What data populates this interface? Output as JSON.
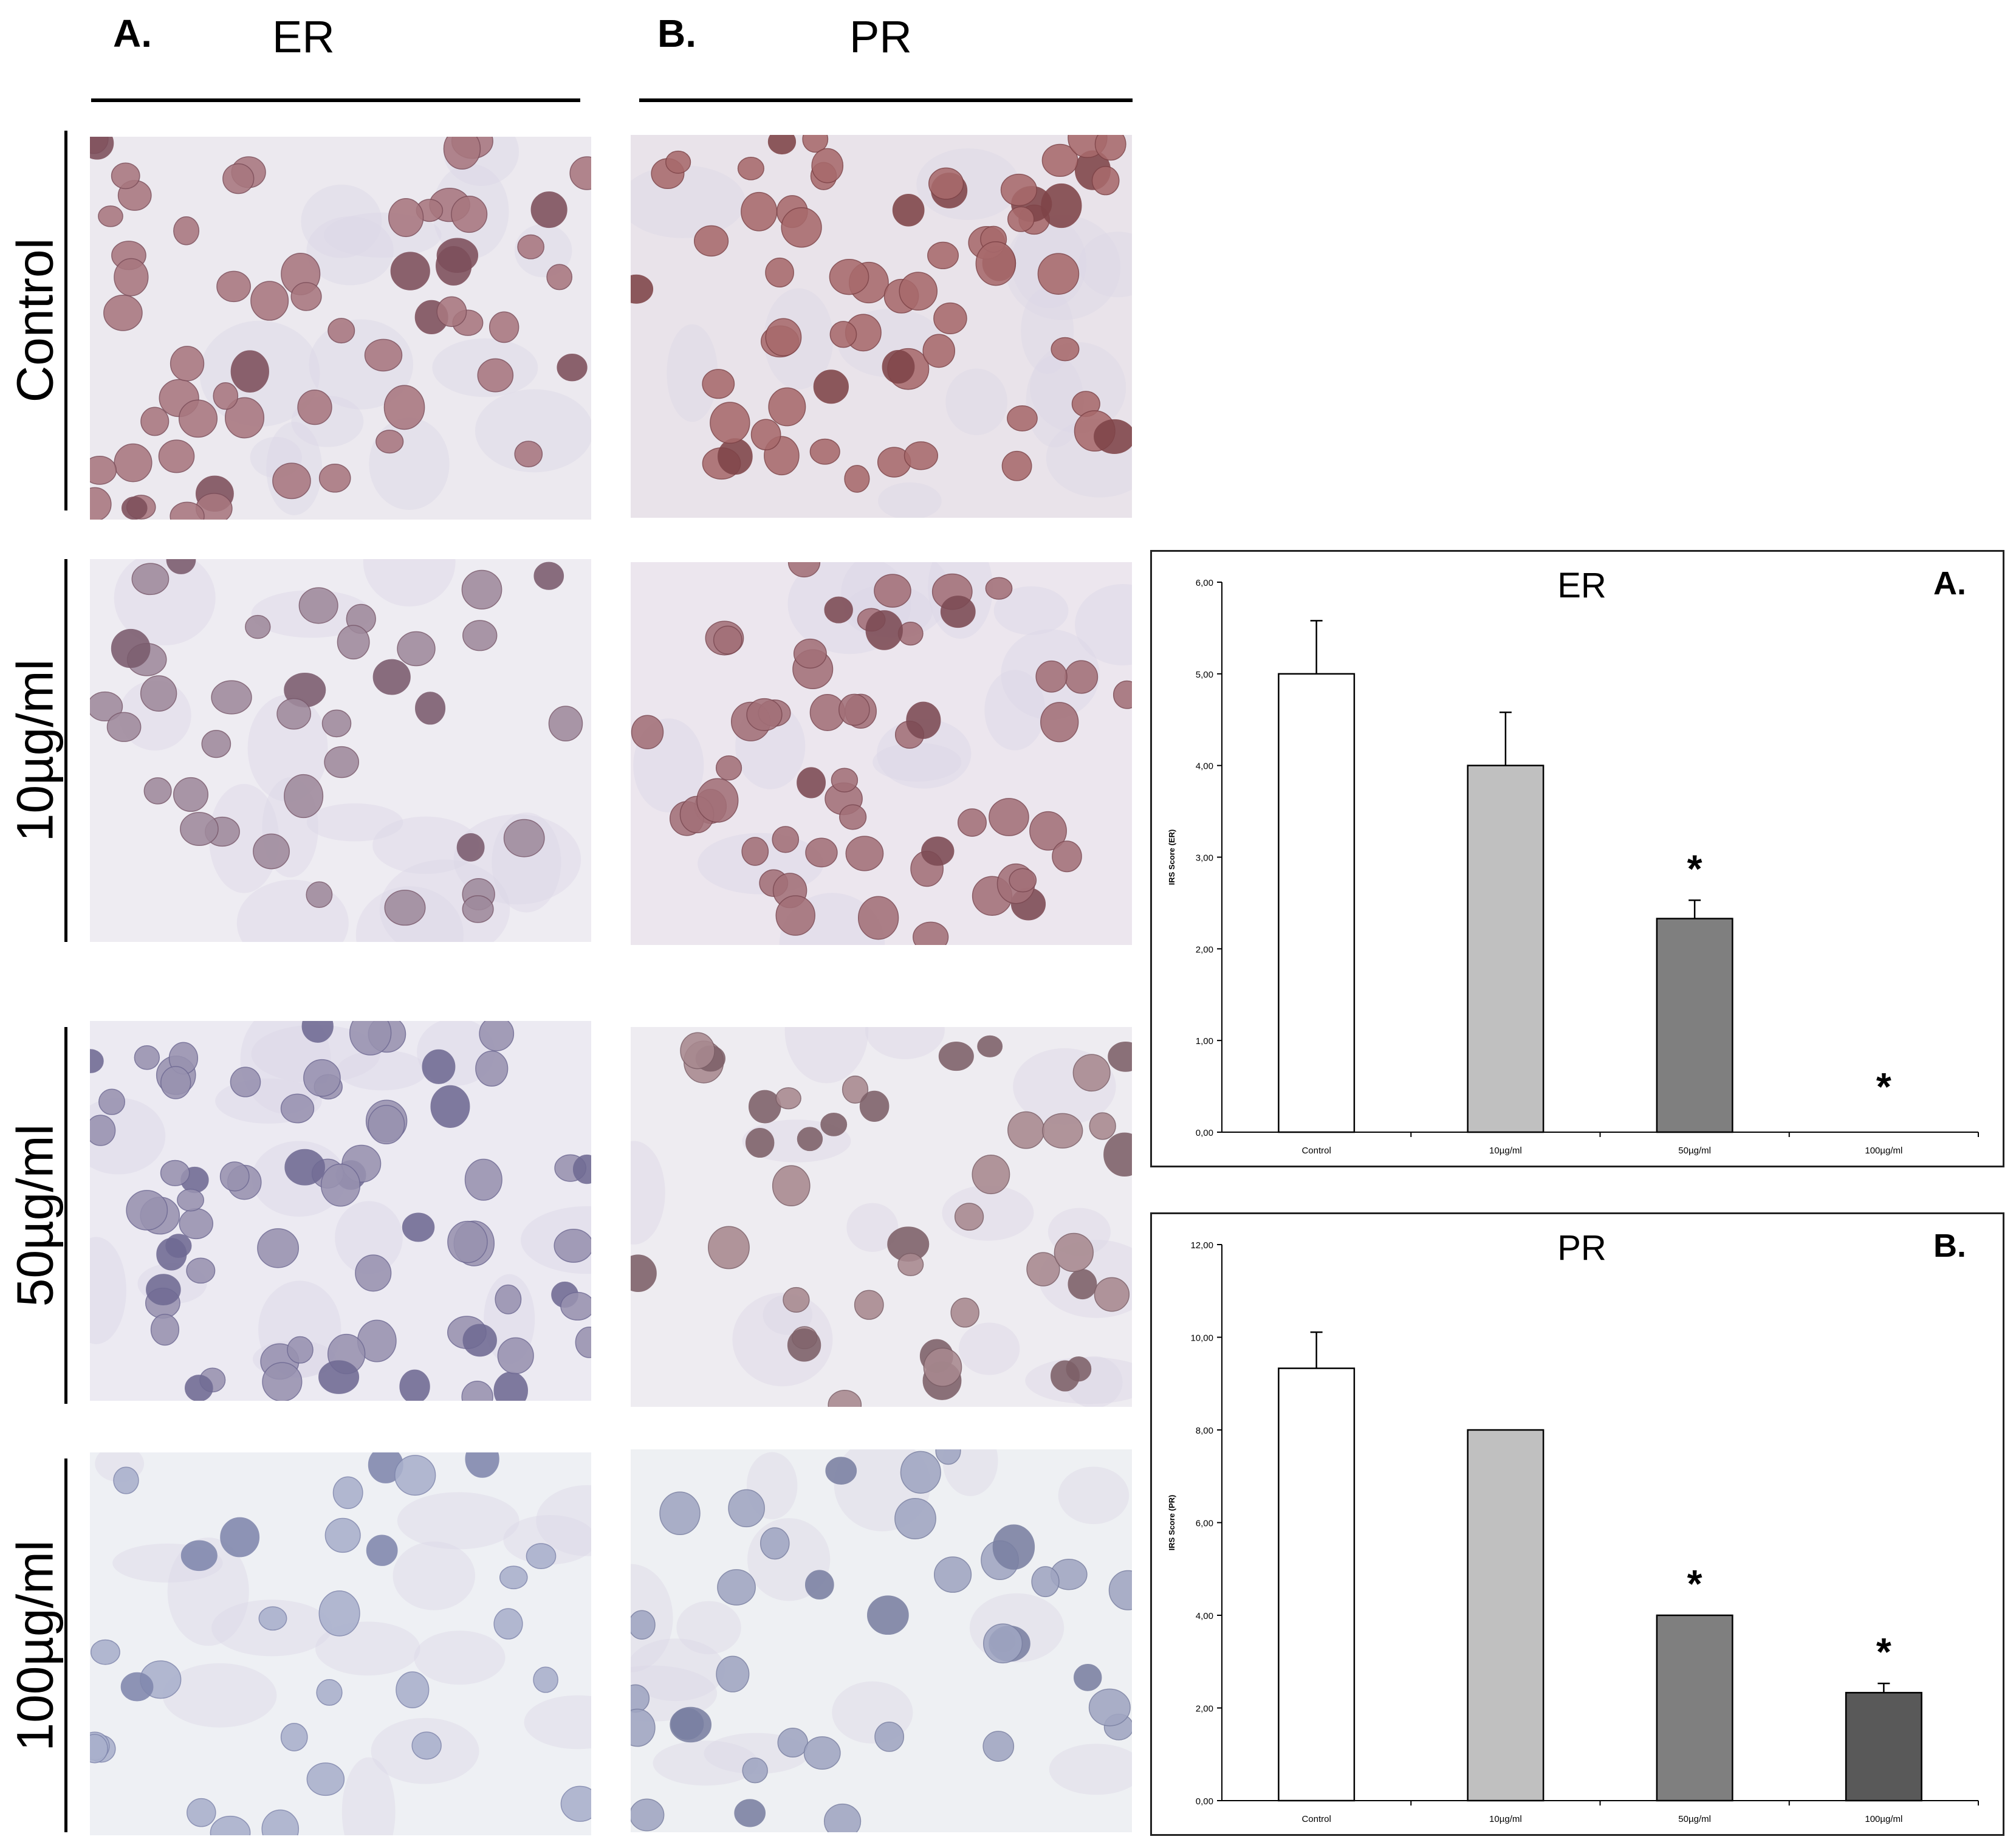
{
  "figure": {
    "panel_a": {
      "letter": "A.",
      "title": "ER"
    },
    "panel_b": {
      "letter": "B.",
      "title": "PR"
    },
    "row_labels": [
      "Control",
      "10µg/ml",
      "50µg/ml",
      "100µg/ml"
    ]
  },
  "micrographs": [
    {
      "marker": "ER",
      "condition": "Control",
      "background": "#ece9ef",
      "nucleus": "#a8777f",
      "nucleus_dark": "#7d4f5b",
      "cells": 58,
      "seed": 11
    },
    {
      "marker": "PR",
      "condition": "Control",
      "background": "#e9e3ea",
      "nucleus": "#a86a6c",
      "nucleus_dark": "#7f4448",
      "cells": 62,
      "seed": 23
    },
    {
      "marker": "ER",
      "condition": "10µg/ml",
      "background": "#eeecf2",
      "nucleus": "#9f8a9c",
      "nucleus_dark": "#7a5b6d",
      "cells": 36,
      "seed": 37
    },
    {
      "marker": "PR",
      "condition": "10µg/ml",
      "background": "#ece6ee",
      "nucleus": "#a37078",
      "nucleus_dark": "#7c4a53",
      "cells": 54,
      "seed": 41
    },
    {
      "marker": "ER",
      "condition": "50µg/ml",
      "background": "#eceaf2",
      "nucleus": "#9892b0",
      "nucleus_dark": "#6f6a93",
      "cells": 66,
      "seed": 53
    },
    {
      "marker": "PR",
      "condition": "50µg/ml",
      "background": "#eeecf1",
      "nucleus": "#a8898f",
      "nucleus_dark": "#7d6068",
      "cells": 40,
      "seed": 67
    },
    {
      "marker": "ER",
      "condition": "100µg/ml",
      "background": "#eef0f4",
      "nucleus": "#a9b0cc",
      "nucleus_dark": "#8087ad",
      "cells": 30,
      "seed": 71
    },
    {
      "marker": "PR",
      "condition": "100µg/ml",
      "background": "#eef0f3",
      "nucleus": "#a0a6c2",
      "nucleus_dark": "#7a80a2",
      "cells": 36,
      "seed": 83
    }
  ],
  "chart_data": [
    {
      "type": "bar",
      "title": "ER",
      "panel": "A.",
      "ylabel": "IRS Score (ER)",
      "ylim": [
        0,
        6
      ],
      "yticks": [
        "0,00",
        "1,00",
        "2,00",
        "3,00",
        "4,00",
        "5,00",
        "6,00"
      ],
      "categories": [
        "Control",
        "10µg/ml",
        "50µg/ml",
        "100µg/ml"
      ],
      "values": [
        5.0,
        4.0,
        2.33,
        0.0
      ],
      "errors": [
        0.58,
        0.58,
        0.2,
        0
      ],
      "significant": [
        "",
        "",
        "*",
        "*"
      ],
      "colors": [
        "#ffffff",
        "#c0c0c0",
        "#7f7f7f",
        "#595959"
      ],
      "grid": false,
      "legend": false
    },
    {
      "type": "bar",
      "title": "PR",
      "panel": "B.",
      "ylabel": "IRS Score (PR)",
      "ylim": [
        0,
        12
      ],
      "yticks": [
        "0,00",
        "2,00",
        "4,00",
        "6,00",
        "8,00",
        "10,00",
        "12,00"
      ],
      "categories": [
        "Control",
        "10µg/ml",
        "50µg/ml",
        "100µg/ml"
      ],
      "values": [
        9.33,
        8.0,
        4.0,
        2.33
      ],
      "errors": [
        0.78,
        0,
        0,
        0.2
      ],
      "significant": [
        "",
        "",
        "*",
        "*"
      ],
      "colors": [
        "#ffffff",
        "#c0c0c0",
        "#7f7f7f",
        "#595959"
      ],
      "grid": false,
      "legend": false
    }
  ]
}
